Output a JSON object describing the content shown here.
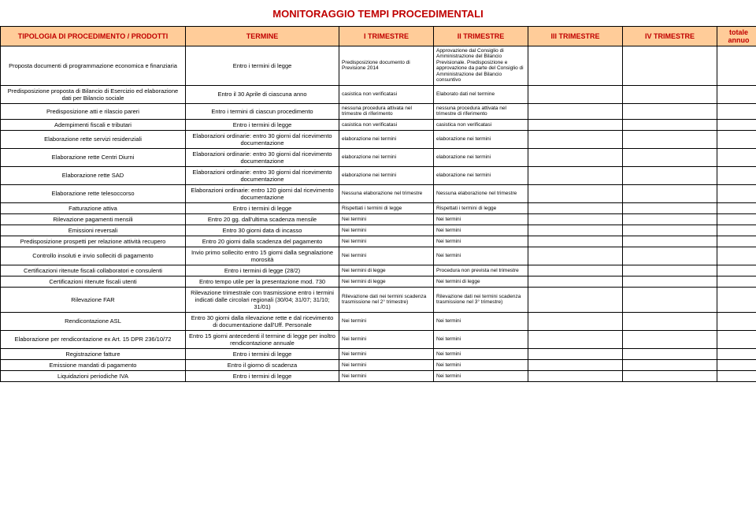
{
  "title": "MONITORAGGIO TEMPI PROCEDIMENTALI",
  "colors": {
    "heading": "#c00000",
    "header_bg": "#ffcc99",
    "border": "#000000",
    "background": "#ffffff",
    "text": "#000000"
  },
  "columns": [
    "TIPOLOGIA DI PROCEDIMENTO / PRODOTTI",
    "TERMINE",
    "I TRIMESTRE",
    "II TRIMESTRE",
    "III TRIMESTRE",
    "IV TRIMESTRE",
    "totale annuo"
  ],
  "rows": [
    {
      "tip": "Proposta documenti di programmazione economica e finanziaria",
      "term": "Entro i termini di legge",
      "q1": "Predisposizione documento di Previsione 2014",
      "q2": "Approvazione dal Consiglio di Amministrazione del Bilancio Previsionale. Predisposizione e approvazione da parte del Consiglio di Amministrazione del Bilancio consuntivo",
      "q3": "",
      "q4": "",
      "tot": ""
    },
    {
      "tip": "Predisposizione proposta di Bilancio di Esercizio ed elaborazione dati per Bilancio sociale",
      "term": "Entro il 30 Aprile di ciascuna anno",
      "q1": "casistica non verificatasi",
      "q2": "Elaborato dati nel termine",
      "q3": "",
      "q4": "",
      "tot": ""
    },
    {
      "tip": "Predisposizione atti e rilascio pareri",
      "term": "Entro i termini di ciascun procedimento",
      "q1": "nessuna procedura attivata nel trimestre di riferimento",
      "q2": "nessuna procedura attivata nel trimestre di riferimento",
      "q3": "",
      "q4": "",
      "tot": ""
    },
    {
      "tip": "Adempimenti fiscali e tributari",
      "term": "Entro i termini di legge",
      "q1": "casistica non verificatasi",
      "q2": "casistica non verificatasi",
      "q3": "",
      "q4": "",
      "tot": ""
    },
    {
      "tip": "Elaborazione rette servizi residenziali",
      "term": "Elaborazioni ordinarie: entro 30 giorni dal ricevimento documentazione",
      "q1": "elaborazione nei termini",
      "q2": "elaborazione nei termini",
      "q3": "",
      "q4": "",
      "tot": ""
    },
    {
      "tip": "Elaborazione rette Centri Diurni",
      "term": "Elaborazioni ordinarie: entro 30 giorni dal ricevimento documentazione",
      "q1": "elaborazione nei termini",
      "q2": "elaborazione nei termini",
      "q3": "",
      "q4": "",
      "tot": ""
    },
    {
      "tip": "Elaborazione rette SAD",
      "term": "Elaborazioni ordinarie: entro 30 giorni dal ricevimento documentazione",
      "q1": "elaborazione nei termini",
      "q2": "elaborazione nei termini",
      "q3": "",
      "q4": "",
      "tot": ""
    },
    {
      "tip": "Elaborazione rette telesoccorso",
      "term": "Elaborazioni ordinarie: entro 120 giorni dal ricevimento documentazione",
      "q1": "Nessuna elaborazione nel trimestre",
      "q2": "Nessuna elaborazione nel trimestre",
      "q3": "",
      "q4": "",
      "tot": ""
    },
    {
      "tip": "Fatturazione attiva",
      "term": "Entro i termini di legge",
      "q1": "Rispettati i termini di legge",
      "q2": "Rispettati i termini di legge",
      "q3": "",
      "q4": "",
      "tot": ""
    },
    {
      "tip": "Rilevazione pagamenti mensili",
      "term": "Entro 20 gg. dall'ultima scadenza mensile",
      "q1": "Nei termini",
      "q2": "Nei termini",
      "q3": "",
      "q4": "",
      "tot": ""
    },
    {
      "tip": "Emissioni reversali",
      "term": "Entro 30 giorni data di incasso",
      "q1": "Nei termini",
      "q2": "Nei termini",
      "q3": "",
      "q4": "",
      "tot": ""
    },
    {
      "tip": "Predisposizione prospetti per relazione attività recupero",
      "term": "Entro 20 giorni dalla scadenza del pagamento",
      "q1": "Nei termini",
      "q2": "Nei termini",
      "q3": "",
      "q4": "",
      "tot": ""
    },
    {
      "tip": "Controllo insoluti e invio solleciti di pagamento",
      "term": "Invio primo sollecito entro 15 giorni dalla segnalazione morosità",
      "q1": "Nei termini",
      "q2": "Nei termini",
      "q3": "",
      "q4": "",
      "tot": ""
    },
    {
      "tip": "Certificazioni ritenute fiscali collaboratori e consulenti",
      "term": "Entro i termini di legge (28/2)",
      "q1": "Nei termini di legge",
      "q2": "Procedura non prevista nel trimestre",
      "q3": "",
      "q4": "",
      "tot": ""
    },
    {
      "tip": "Certificazioni ritenute fiscali utenti",
      "term": "Entro tempo utile per la presentazione mod. 730",
      "q1": "Nei termini di legge",
      "q2": "Nei termini di legge",
      "q3": "",
      "q4": "",
      "tot": ""
    },
    {
      "tip": "Rilevazione FAR",
      "term": "Rilevazione trimestrale con trasmissione entro i termini indicati dalle circolari regionali (30/04; 31/07; 31/10; 31/01)",
      "q1": "Rilevazione dati nei termini scadenza trasmissione nel  2° trimestre)",
      "q2": "Rilevazione dati nei termini scadenza trasmissione nel  3° trimestre)",
      "q3": "",
      "q4": "",
      "tot": ""
    },
    {
      "tip": "Rendicontazione ASL",
      "term": "Entro 30 giorni dalla rilevazione rette e dal ricevimento di documentazione dall'Uff. Personale",
      "q1": "Nei termini",
      "q2": "Nei termini",
      "q3": "",
      "q4": "",
      "tot": ""
    },
    {
      "tip": "Elaborazione per rendicontazione ex Art. 15 DPR 236/10/72",
      "term": "Entro 15 giorni antecedenti il termine di legge per inoltro rendicontazione annuale",
      "q1": "Nei termini",
      "q2": "Nei termini",
      "q3": "",
      "q4": "",
      "tot": ""
    },
    {
      "tip": "Registrazione fatture",
      "term": "Entro i termini di legge",
      "q1": "Nei termini",
      "q2": "Nei termini",
      "q3": "",
      "q4": "",
      "tot": ""
    },
    {
      "tip": "Emissione mandati di pagamento",
      "term": "Entro il giorno di scadenza",
      "q1": "Nei termini",
      "q2": "Nei termini",
      "q3": "",
      "q4": "",
      "tot": ""
    },
    {
      "tip": "Liquidazioni periodiche IVA",
      "term": "Entro i termini di legge",
      "q1": "Nei termini",
      "q2": "Nei termini",
      "q3": "",
      "q4": "",
      "tot": ""
    }
  ]
}
